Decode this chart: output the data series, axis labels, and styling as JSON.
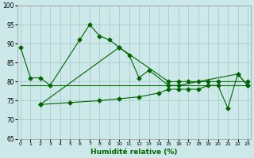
{
  "bg_color": "#cce8e8",
  "grid_color": "#aacccc",
  "line_color": "#006600",
  "xlabel": "Humidité relative (%)",
  "ylim": [
    65,
    100
  ],
  "xlim": [
    -0.5,
    23.5
  ],
  "yticks": [
    65,
    70,
    75,
    80,
    85,
    90,
    95,
    100
  ],
  "xticks": [
    0,
    1,
    2,
    3,
    4,
    5,
    6,
    7,
    8,
    9,
    10,
    11,
    12,
    13,
    14,
    15,
    16,
    17,
    18,
    19,
    20,
    21,
    22,
    23
  ],
  "s1x": [
    0,
    1,
    2,
    3,
    6,
    7,
    8,
    9,
    10,
    11,
    12,
    13,
    15,
    16,
    22,
    23
  ],
  "s1y": [
    89,
    81,
    81,
    79,
    91,
    95,
    92,
    91,
    89,
    87,
    81,
    83,
    79,
    79,
    82,
    79
  ],
  "s2x": [
    2,
    10,
    15,
    16,
    17,
    18,
    19,
    20,
    23
  ],
  "s2y": [
    74,
    89,
    80,
    80,
    80,
    80,
    80,
    80,
    80
  ],
  "s3x": [
    0,
    1,
    2,
    3,
    4,
    5,
    6,
    7,
    8,
    9,
    10,
    11,
    12,
    13,
    14,
    15,
    16,
    17,
    18,
    19,
    20,
    21,
    22,
    23
  ],
  "s3y": [
    79,
    79,
    79,
    79,
    79,
    79,
    79,
    79,
    79,
    79,
    79,
    79,
    79,
    79,
    79,
    79,
    79,
    79,
    79,
    79,
    79,
    79,
    79,
    79
  ],
  "s4x": [
    2,
    5,
    8,
    10,
    12,
    14,
    15,
    16,
    17,
    18,
    19,
    20,
    21,
    22,
    23
  ],
  "s4y": [
    74,
    74.5,
    75,
    75.5,
    76,
    77,
    78,
    78,
    78,
    78,
    79,
    79,
    73,
    82,
    79
  ]
}
